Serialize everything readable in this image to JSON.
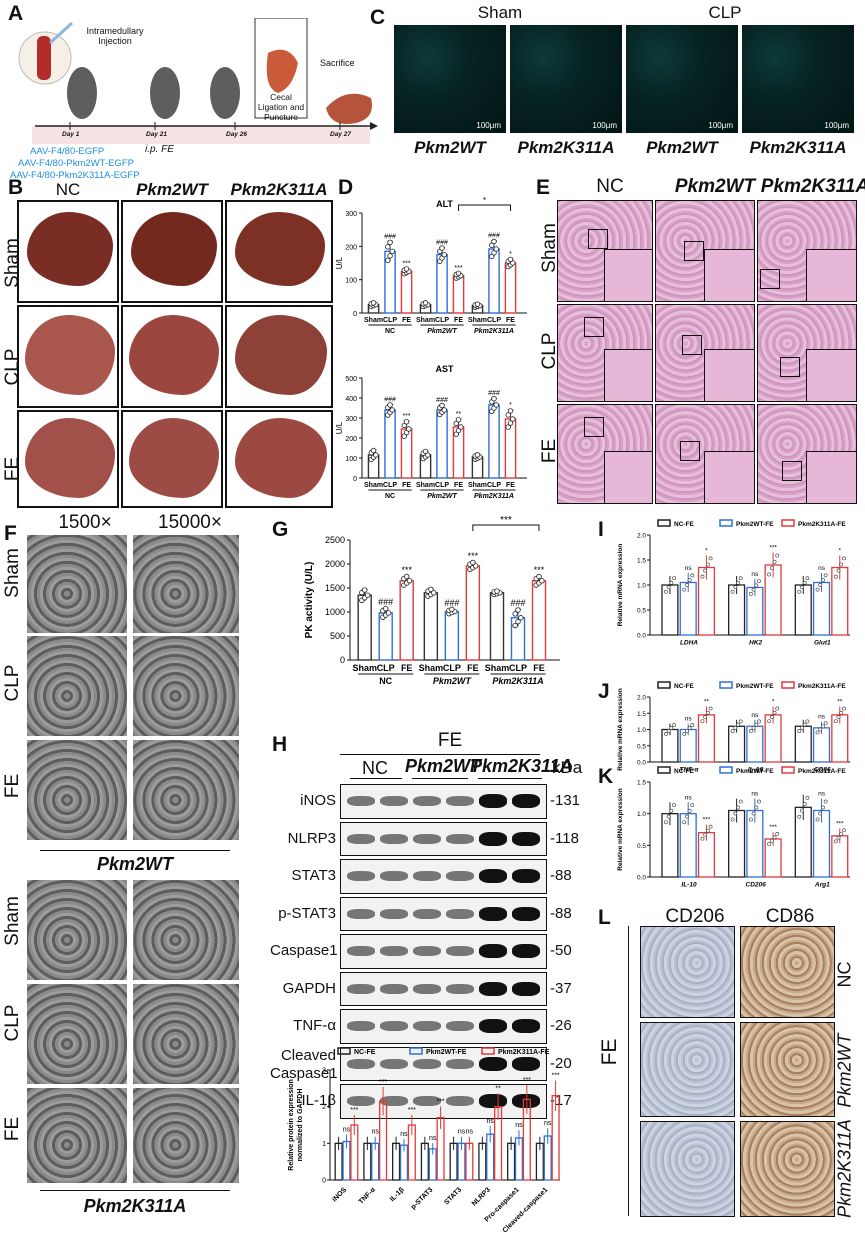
{
  "panels": {
    "A": "A",
    "B": "B",
    "C": "C",
    "D": "D",
    "E": "E",
    "F": "F",
    "G": "G",
    "H": "H",
    "I": "I",
    "J": "J",
    "K": "K",
    "L": "L"
  },
  "A": {
    "steps": [
      "Intramedullary\nInjection",
      "Cecal\nLigation and\nPuncture",
      "Sacrifice"
    ],
    "days": [
      "Day 1",
      "Day 21",
      "Day 26",
      "Day 27"
    ],
    "ip": "i.p. FE",
    "vectors": [
      "AAV-F4/80-EGFP",
      "AAV-F4/80-Pkm2WT-EGFP",
      "AAV-F4/80-Pkm2K311A-EGFP"
    ],
    "vector_color": "#1f8ee0"
  },
  "B": {
    "cols": [
      "NC",
      "Pkm2WT",
      "Pkm2K311A"
    ],
    "rows": [
      "Sham",
      "CLP",
      "FE"
    ]
  },
  "C": {
    "groups": [
      "Sham",
      "CLP"
    ],
    "labels": [
      "Pkm2WT",
      "Pkm2K311A",
      "Pkm2WT",
      "Pkm2K311A"
    ],
    "scalebar": "100μm"
  },
  "D": {
    "chart_data": [
      {
        "type": "bar",
        "title": "ALT",
        "ylabel": "U/L",
        "ylim": [
          0,
          300
        ],
        "yticks": [
          0,
          100,
          200,
          300
        ],
        "categories": [
          "Sham",
          "CLP",
          "FE",
          "Sham",
          "CLP",
          "FE",
          "Sham",
          "CLP",
          "FE"
        ],
        "groups": [
          "NC",
          "Pkm2WT",
          "Pkm2K311A"
        ],
        "values": [
          25,
          185,
          125,
          25,
          175,
          112,
          22,
          192,
          150
        ],
        "errors": [
          6,
          30,
          8,
          6,
          22,
          8,
          5,
          25,
          12
        ],
        "sig": [
          "",
          "###",
          "***",
          "",
          "###",
          "***",
          "",
          "###",
          "*"
        ],
        "bracket": "*"
      },
      {
        "type": "bar",
        "title": "AST",
        "ylabel": "U/L",
        "ylim": [
          0,
          500
        ],
        "yticks": [
          0,
          100,
          200,
          300,
          400,
          500
        ],
        "categories": [
          "Sham",
          "CLP",
          "FE",
          "Sham",
          "CLP",
          "FE",
          "Sham",
          "CLP",
          "FE"
        ],
        "groups": [
          "NC",
          "Pkm2WT",
          "Pkm2K311A"
        ],
        "values": [
          115,
          340,
          245,
          115,
          340,
          255,
          105,
          365,
          295
        ],
        "errors": [
          25,
          28,
          40,
          20,
          25,
          40,
          12,
          35,
          45
        ],
        "sig": [
          "",
          "###",
          "***",
          "",
          "###",
          "**",
          "",
          "###",
          "*"
        ]
      }
    ]
  },
  "E": {
    "cols": [
      "NC",
      "Pkm2WT",
      "Pkm2K311A"
    ],
    "rows": [
      "Sham",
      "CLP",
      "FE"
    ]
  },
  "F": {
    "mags": [
      "1500×",
      "15000×"
    ],
    "rows": [
      "Sham",
      "CLP",
      "FE"
    ],
    "group1": "Pkm2WT",
    "group2": "Pkm2K311A"
  },
  "G": {
    "chart_data": {
      "type": "bar",
      "ylabel": "PK activity (U/L)",
      "ylim": [
        0,
        2500
      ],
      "yticks": [
        0,
        500,
        1000,
        1500,
        2000,
        2500
      ],
      "categories": [
        "Sham",
        "CLP",
        "FE",
        "Sham",
        "CLP",
        "FE",
        "Sham",
        "CLP",
        "FE"
      ],
      "groups": [
        "NC",
        "Pkm2WT",
        "Pkm2K311A"
      ],
      "values": [
        1350,
        980,
        1650,
        1400,
        1010,
        1960,
        1400,
        880,
        1650
      ],
      "errors": [
        120,
        100,
        100,
        80,
        50,
        80,
        40,
        180,
        100
      ],
      "sig": [
        "",
        "###",
        "***",
        "",
        "###",
        "***",
        "",
        "###",
        "***"
      ],
      "bracket": "***"
    }
  },
  "H": {
    "title": "FE",
    "groups": [
      "NC",
      "Pkm2WT",
      "Pkm2K311A"
    ],
    "kda_label": "kDa",
    "blots": [
      {
        "name": "iNOS",
        "kda": "131"
      },
      {
        "name": "NLRP3",
        "kda": "118"
      },
      {
        "name": "STAT3",
        "kda": "88"
      },
      {
        "name": "p-STAT3",
        "kda": "88"
      },
      {
        "name": "Caspase1",
        "kda": "50"
      },
      {
        "name": "GAPDH",
        "kda": "37"
      },
      {
        "name": "TNF-α",
        "kda": "26"
      },
      {
        "name": "Cleaved\nCaspase1",
        "kda": "20"
      },
      {
        "name": "IL-1β",
        "kda": "17"
      }
    ],
    "chart_data": {
      "type": "bar",
      "ylabel": "Relative protein expression\nnormalized to GAPDH",
      "ylim": [
        0,
        3
      ],
      "yticks": [
        0,
        1,
        2,
        3
      ],
      "legend": [
        "NC-FE",
        "Pkm2WT-FE",
        "Pkm2K311A-FE"
      ],
      "categories": [
        "iNOS",
        "TNF-α",
        "IL-1β",
        "p-STAT3",
        "STAT3",
        "NLRP3",
        "Pro-caspase1",
        "Cleaved-caspase1"
      ],
      "series": [
        {
          "name": "NC-FE",
          "values": [
            1.0,
            1.0,
            1.0,
            1.0,
            1.0,
            1.0,
            1.0,
            1.0
          ],
          "color": "#222222"
        },
        {
          "name": "Pkm2WT-FE",
          "values": [
            1.05,
            1.0,
            0.95,
            0.85,
            1.0,
            1.25,
            1.15,
            1.2
          ],
          "color": "#2f6fd6"
        },
        {
          "name": "Pkm2K311A-FE",
          "values": [
            1.5,
            2.15,
            1.5,
            1.7,
            1.0,
            2.0,
            2.2,
            2.3
          ],
          "color": "#e23a3a"
        }
      ],
      "sig": [
        [
          "ns",
          "***"
        ],
        [
          "ns",
          "***"
        ],
        [
          "ns",
          "***"
        ],
        [
          "ns",
          "***"
        ],
        [
          "ns",
          "ns"
        ],
        [
          "ns",
          "**"
        ],
        [
          "ns",
          "***"
        ],
        [
          "ns",
          "***"
        ]
      ]
    }
  },
  "I": {
    "chart_data": {
      "type": "bar",
      "ylabel": "Relative mRNA expression",
      "ylim": [
        0,
        2.0
      ],
      "yticks": [
        0,
        0.5,
        1.0,
        1.5,
        2.0
      ],
      "legend": [
        "NC-FE",
        "Pkm2WT-FE",
        "Pkm2K311A-FE"
      ],
      "categories": [
        "LDHA",
        "HK2",
        "Glut1"
      ],
      "series": [
        {
          "name": "NC-FE",
          "values": [
            1.0,
            1.0,
            1.0
          ],
          "color": "#222222"
        },
        {
          "name": "Pkm2WT-FE",
          "values": [
            1.05,
            0.95,
            1.05
          ],
          "color": "#2f6fd6"
        },
        {
          "name": "Pkm2K311A-FE",
          "values": [
            1.35,
            1.4,
            1.35
          ],
          "color": "#e23a3a"
        }
      ],
      "sig": [
        [
          "ns",
          "*"
        ],
        [
          "ns",
          "***"
        ],
        [
          "ns",
          "*"
        ]
      ]
    }
  },
  "J": {
    "chart_data": {
      "type": "bar",
      "ylabel": "Relative mRNA expression",
      "ylim": [
        0,
        2.0
      ],
      "yticks": [
        0,
        0.5,
        1.0,
        1.5,
        2.0
      ],
      "legend": [
        "NC-FE",
        "Pkm2WT-FE",
        "Pkm2K311A-FE"
      ],
      "categories": [
        "TNF-α",
        "IL-1β",
        "CD86"
      ],
      "series": [
        {
          "name": "NC-FE",
          "values": [
            1.0,
            1.1,
            1.1
          ],
          "color": "#222222"
        },
        {
          "name": "Pkm2WT-FE",
          "values": [
            1.0,
            1.1,
            1.05
          ],
          "color": "#2f6fd6"
        },
        {
          "name": "Pkm2K311A-FE",
          "values": [
            1.45,
            1.45,
            1.45
          ],
          "color": "#e23a3a"
        }
      ],
      "sig": [
        [
          "ns",
          "**"
        ],
        [
          "ns",
          "*"
        ],
        [
          "ns",
          "**"
        ]
      ]
    }
  },
  "K": {
    "chart_data": {
      "type": "bar",
      "ylabel": "Relative mRNA expression",
      "ylim": [
        0,
        1.5
      ],
      "yticks": [
        0,
        0.5,
        1.0,
        1.5
      ],
      "legend": [
        "NC-FE",
        "Pkm2WT-FE",
        "Pkm2K311A-FE"
      ],
      "categories": [
        "IL-10",
        "CD206",
        "Arg1"
      ],
      "series": [
        {
          "name": "NC-FE",
          "values": [
            1.0,
            1.05,
            1.1
          ],
          "color": "#222222"
        },
        {
          "name": "Pkm2WT-FE",
          "values": [
            1.0,
            1.05,
            1.05
          ],
          "color": "#2f6fd6"
        },
        {
          "name": "Pkm2K311A-FE",
          "values": [
            0.7,
            0.6,
            0.65
          ],
          "color": "#e23a3a"
        }
      ],
      "sig": [
        [
          "ns",
          "***"
        ],
        [
          "ns",
          "***"
        ],
        [
          "ns",
          "***"
        ]
      ]
    }
  },
  "L": {
    "cols": [
      "CD206",
      "CD86"
    ],
    "rows": [
      "NC",
      "Pkm2WT",
      "Pkm2K311A"
    ],
    "side": "FE"
  }
}
